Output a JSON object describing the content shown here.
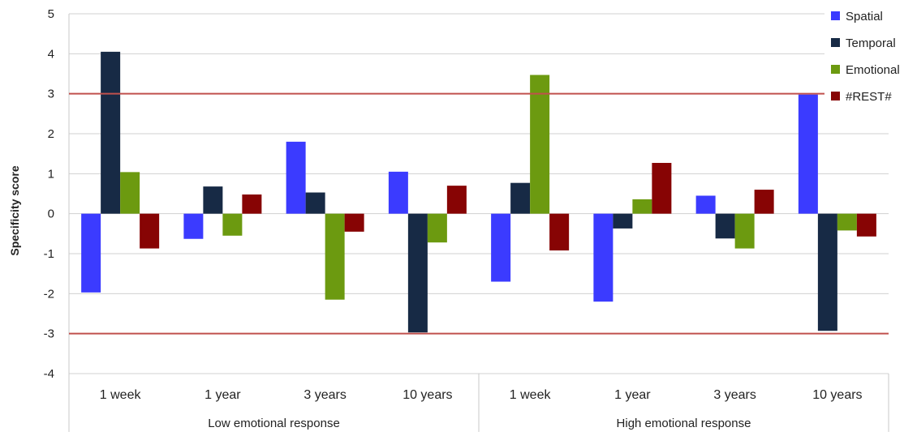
{
  "chart_data": {
    "type": "bar",
    "ylabel": "Specificity score",
    "ylim": [
      -4,
      5
    ],
    "yticks": [
      5,
      4,
      3,
      2,
      1,
      0,
      -1,
      -2,
      -3,
      -4
    ],
    "grid": true,
    "legend_position": "top-right",
    "groups": [
      "Low emotional response",
      "High emotional response"
    ],
    "categories": [
      "1 week",
      "1 year",
      "3 years",
      "10 years",
      "1 week",
      "1 year",
      "3 years",
      "10 years"
    ],
    "series": [
      {
        "name": "Spatial",
        "color": "#3b3bff",
        "values": [
          -1.97,
          -0.63,
          1.8,
          1.05,
          -1.7,
          -2.2,
          0.45,
          2.98
        ]
      },
      {
        "name": "Temporal",
        "color": "#172a45",
        "values": [
          4.05,
          0.68,
          0.53,
          -2.97,
          0.77,
          -0.37,
          -0.62,
          -2.93
        ]
      },
      {
        "name": "Emotional",
        "color": "#6c9a10",
        "values": [
          1.04,
          -0.55,
          -2.15,
          -0.72,
          3.47,
          0.36,
          -0.87,
          -0.42
        ]
      },
      {
        "name": "#REST#",
        "color": "#870404",
        "values": [
          -0.87,
          0.48,
          -0.45,
          0.7,
          -0.92,
          1.27,
          0.6,
          -0.57
        ]
      }
    ],
    "reference_lines": [
      3,
      -3
    ],
    "reference_line_color": "#c0504d"
  }
}
